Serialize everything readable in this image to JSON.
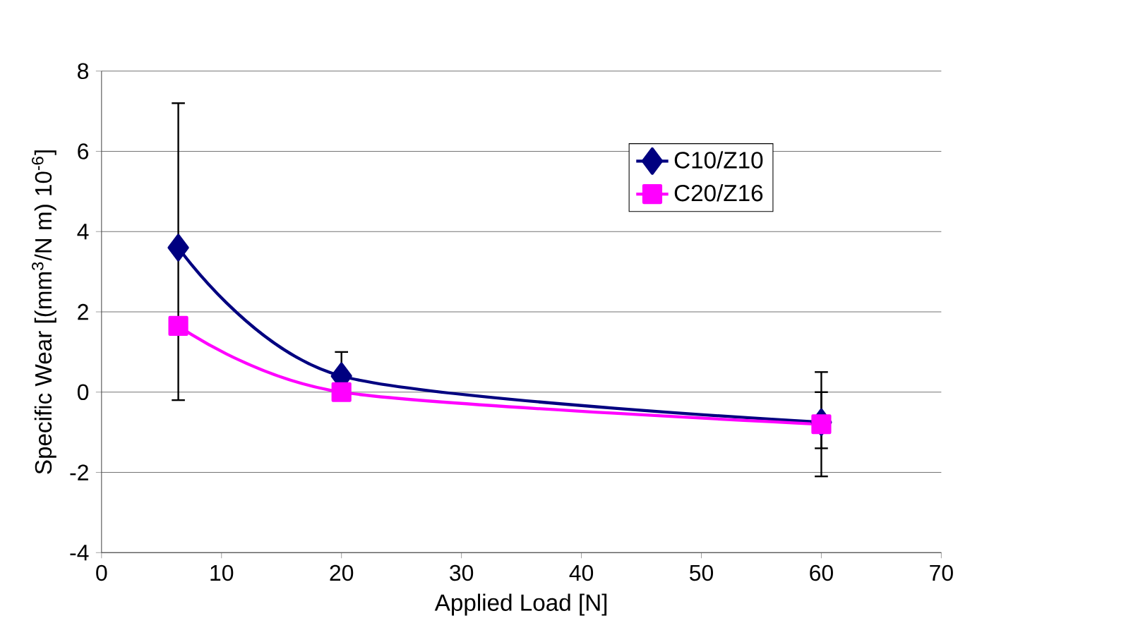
{
  "chart_data": {
    "type": "line",
    "xlabel": "Applied Load [N]",
    "ylabel": "Specific Wear [(mm$^{3}$/N m) 10$^{-6}$]",
    "xlim": [
      0,
      70
    ],
    "xticks": [
      0,
      10,
      20,
      30,
      40,
      50,
      60,
      70
    ],
    "ylim": [
      -4,
      8
    ],
    "yticks": [
      -4,
      -2,
      0,
      2,
      4,
      6,
      8
    ],
    "grid": "y",
    "legend": "top right",
    "series": [
      {
        "name": "C10/Z10",
        "color": "#000080",
        "marker": "diamond",
        "x": [
          6.4,
          20,
          60
        ],
        "values": [
          3.6,
          0.4,
          -0.75
        ],
        "errors": [
          [
            -0.2,
            7.2
          ],
          [
            -0.2,
            1.0
          ],
          [
            -2.1,
            0.5
          ]
        ]
      },
      {
        "name": "C20/Z16",
        "color": "#ff00ff",
        "marker": "square",
        "x": [
          6.4,
          20,
          60
        ],
        "values": [
          1.65,
          0.0,
          -0.8
        ],
        "errors": [
          null,
          null,
          [
            -1.4,
            0.0
          ]
        ]
      }
    ]
  }
}
